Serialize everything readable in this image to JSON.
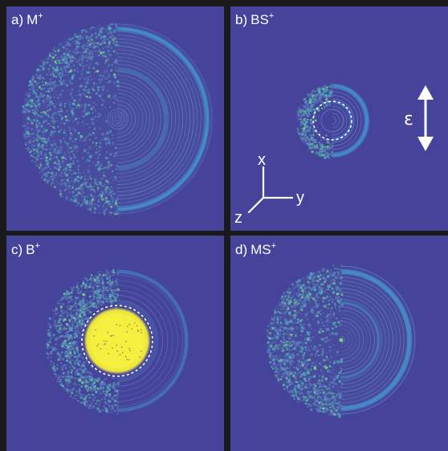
{
  "panels": [
    {
      "letter": "a)",
      "ion": "M",
      "charge": "+"
    },
    {
      "letter": "b)",
      "ion": "BS",
      "charge": "+"
    },
    {
      "letter": "c)",
      "ion": "B",
      "charge": "+"
    },
    {
      "letter": "d)",
      "ion": "MS",
      "charge": "+"
    }
  ],
  "axes": {
    "x": "x",
    "y": "y",
    "z": "z"
  },
  "polarization_label": "ε",
  "colors": {
    "background": "#46449a",
    "frame": "#1a1a1a",
    "ring_cyan": "#3fa0d8",
    "speckle": "#4fb0b4",
    "saturated": "#eee83a",
    "text": "#ffffff"
  }
}
